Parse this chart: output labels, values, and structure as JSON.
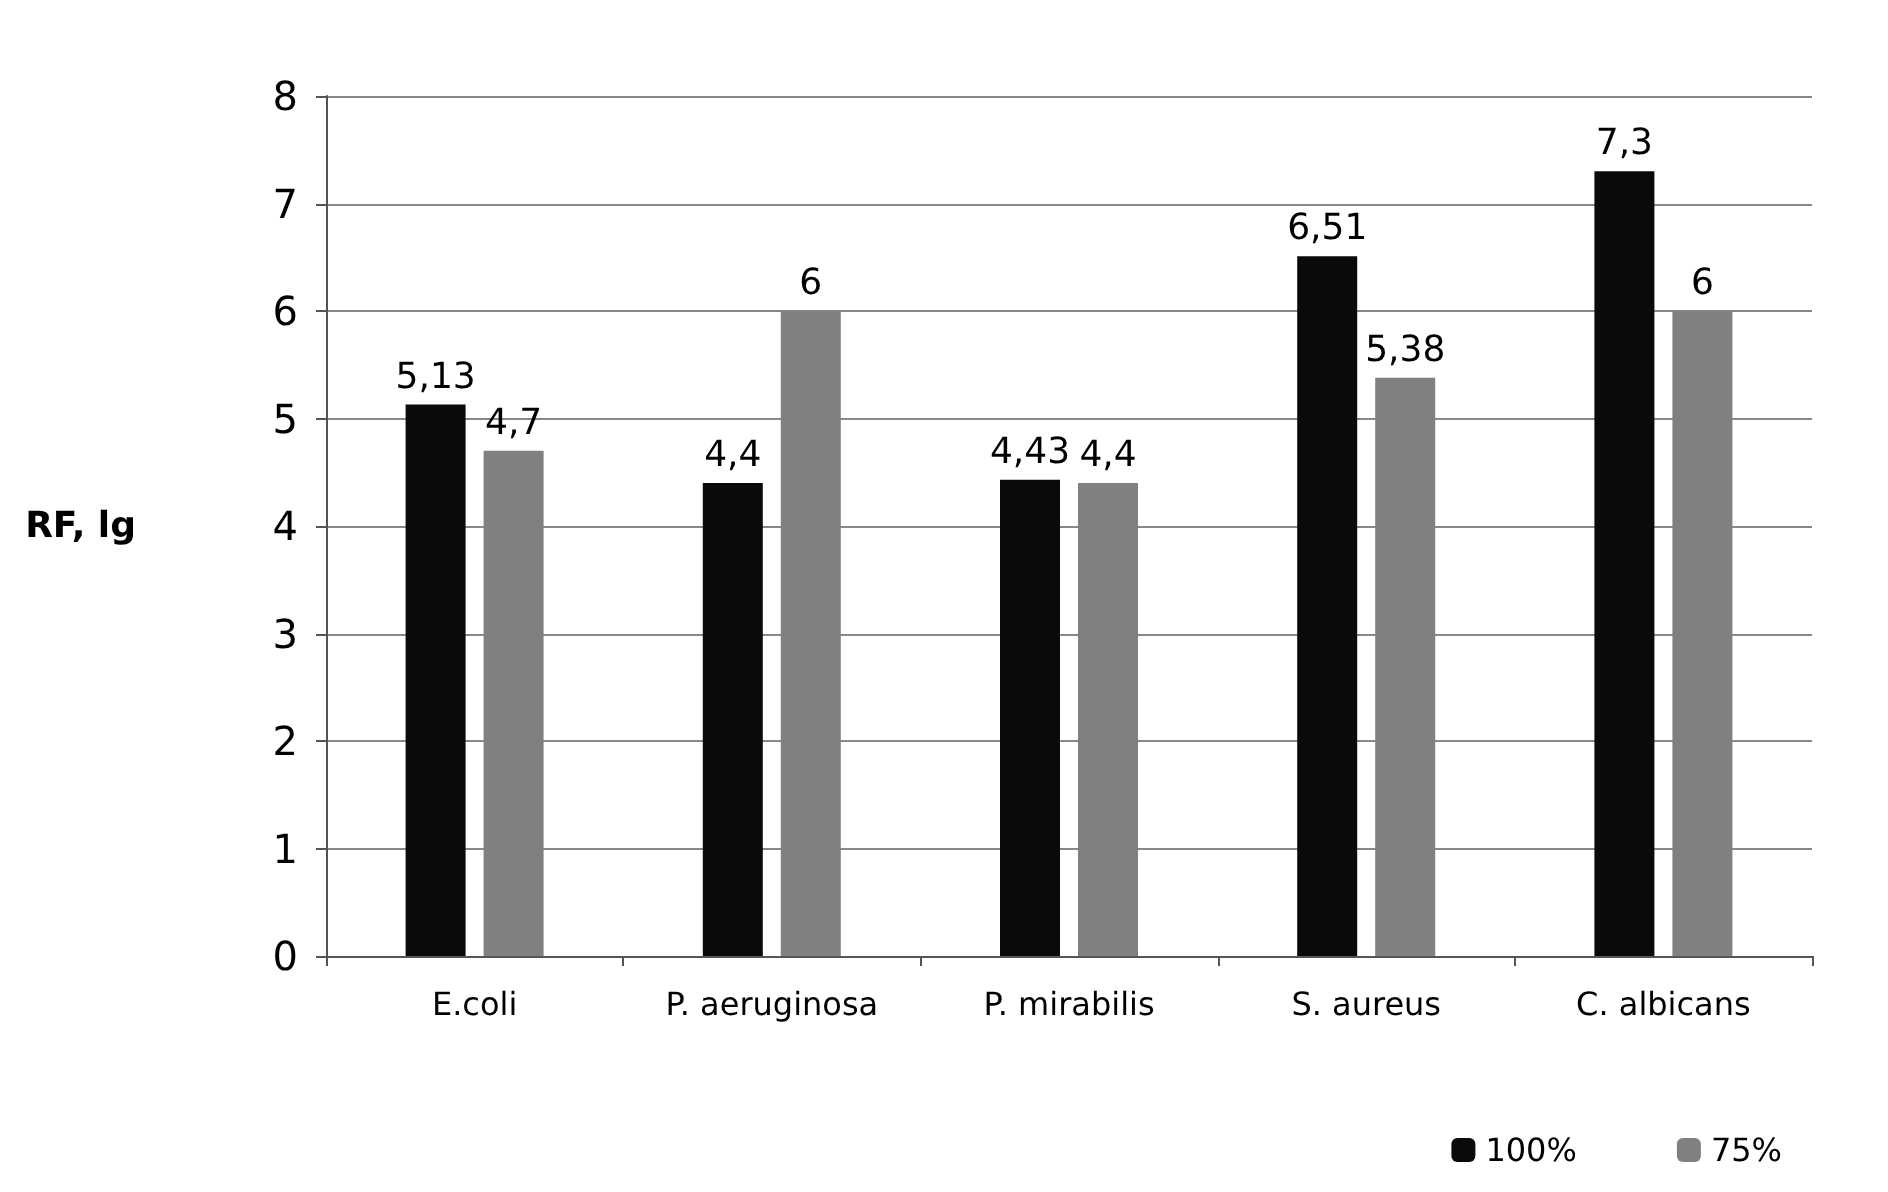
{
  "chart_data": {
    "type": "bar",
    "ylabel": "RF, lg",
    "categories": [
      "E.coli",
      "P. aeruginosa",
      "P. mirabilis",
      "S. aureus",
      "C. albicans"
    ],
    "series": [
      {
        "name": "100%",
        "color": "#0a0a0a",
        "values": [
          5.13,
          4.4,
          4.43,
          6.51,
          7.3
        ],
        "value_labels": [
          "5,13",
          "4,4",
          "4,43",
          "6,51",
          "7,3"
        ]
      },
      {
        "name": "75%",
        "color": "#808080",
        "values": [
          4.7,
          6,
          4.4,
          5.38,
          6
        ],
        "value_labels": [
          "4,7",
          "6",
          "4,4",
          "5,38",
          "6"
        ]
      }
    ],
    "ylim": [
      0,
      8
    ],
    "yticks": [
      0,
      1,
      2,
      3,
      4,
      5,
      6,
      7,
      8
    ],
    "grid": "y",
    "legend": "bottom right"
  }
}
